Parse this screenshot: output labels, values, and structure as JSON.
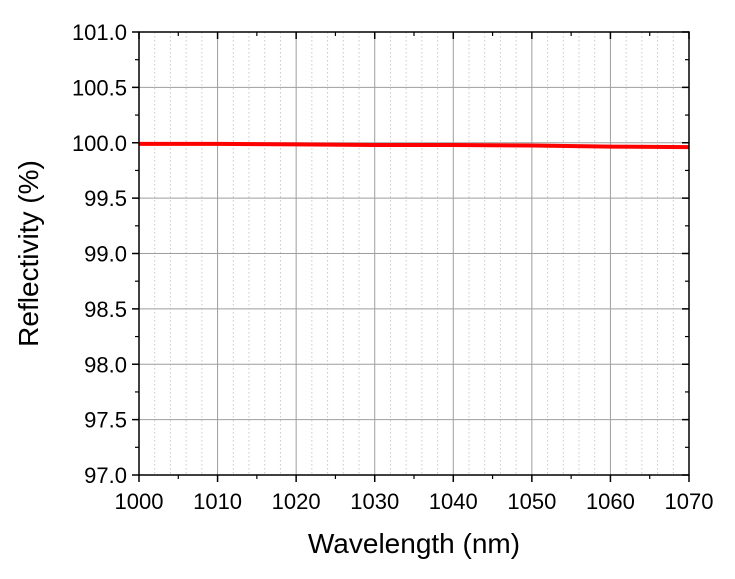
{
  "chart_data": {
    "type": "line",
    "title": "",
    "xlabel": "Wavelength (nm)",
    "ylabel": "Reflectivity (%)",
    "xlim": [
      1000,
      1070
    ],
    "ylim": [
      97.0,
      101.0
    ],
    "x_ticks": [
      1000,
      1010,
      1020,
      1030,
      1040,
      1050,
      1060,
      1070
    ],
    "x_tick_labels": [
      "1000",
      "1010",
      "1020",
      "1030",
      "1040",
      "1050",
      "1060",
      "1070"
    ],
    "y_ticks": [
      97.0,
      97.5,
      98.0,
      98.5,
      99.0,
      99.5,
      100.0,
      100.5,
      101.0
    ],
    "y_tick_labels": [
      "97.0",
      "97.5",
      "98.0",
      "98.5",
      "99.0",
      "99.5",
      "100.0",
      "100.5",
      "101.0"
    ],
    "grid": true,
    "minor_grid": true,
    "series": [
      {
        "color": "#ff0000",
        "x": [
          1000,
          1010,
          1020,
          1030,
          1040,
          1050,
          1060,
          1070
        ],
        "y": [
          99.99,
          99.99,
          99.985,
          99.98,
          99.98,
          99.975,
          99.965,
          99.96
        ]
      }
    ]
  }
}
